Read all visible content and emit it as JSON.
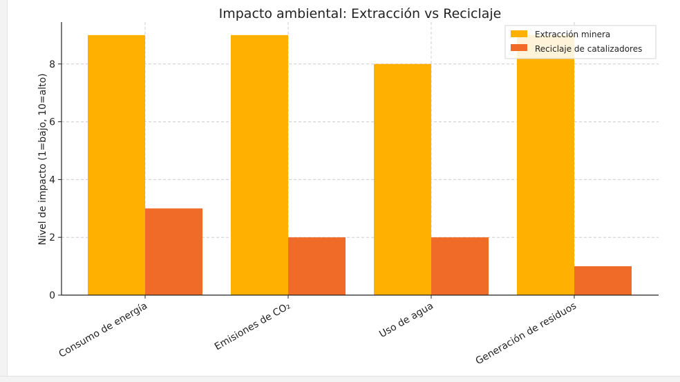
{
  "chart_data": {
    "type": "bar",
    "title": "Impacto ambiental: Extracción vs Reciclaje",
    "xlabel": "",
    "ylabel": "Nivel de impacto (1=bajo, 10=alto)",
    "categories": [
      "Consumo de energía",
      "Emisiones de CO₂",
      "Uso de agua",
      "Generación de residuos"
    ],
    "series": [
      {
        "name": "Extracción minera",
        "values": [
          9,
          9,
          8,
          9
        ],
        "color": "#FFB000"
      },
      {
        "name": "Reciclaje de catalizadores",
        "values": [
          3,
          2,
          2,
          1
        ],
        "color": "#F06A28"
      }
    ],
    "ylim": [
      0,
      9.45
    ],
    "yticks": [
      0,
      2,
      4,
      6,
      8
    ],
    "grid": true,
    "legend_position": "top-right"
  }
}
